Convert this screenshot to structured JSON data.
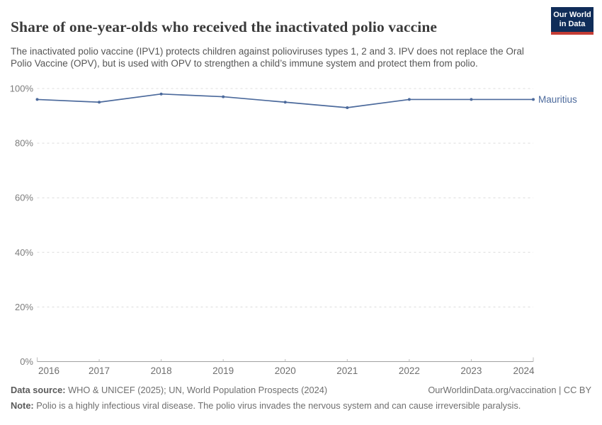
{
  "header": {
    "title": "Share of one-year-olds who received the inactivated polio vaccine",
    "logo": {
      "line1": "Our World",
      "line2": "in Data"
    }
  },
  "subtitle": "The inactivated polio vaccine (IPV1) protects children against polioviruses types 1, 2 and 3. IPV does not replace the Oral Polio Vaccine (OPV), but is used with OPV to strengthen a child’s immune system and protect them from polio.",
  "chart_data": {
    "type": "line",
    "title": "Share of one-year-olds who received the inactivated polio vaccine",
    "categories": [
      "2016",
      "2017",
      "2018",
      "2019",
      "2020",
      "2021",
      "2022",
      "2023",
      "2024"
    ],
    "series": [
      {
        "name": "Mauritius",
        "values": [
          96,
          95,
          98,
          97,
          95,
          93,
          96,
          96,
          96
        ],
        "color": "#4c6a9c"
      }
    ],
    "xlabel": "",
    "ylabel": "",
    "ylim": [
      0,
      100
    ],
    "yticks": [
      0,
      20,
      40,
      60,
      80,
      100
    ],
    "ytick_suffix": "%",
    "grid": "horizontal-dashed",
    "legend": "end-of-line-label"
  },
  "footer": {
    "datasource_label": "Data source:",
    "datasource_text": " WHO & UNICEF (2025); UN, World Population Prospects (2024)",
    "rights": "OurWorldinData.org/vaccination | CC BY",
    "note_label": "Note:",
    "note_text": " Polio is a highly infectious viral disease. The polio virus invades the nervous system and can cause irreversible paralysis."
  },
  "colors": {
    "line": "#4c6a9c",
    "gridline": "#dcdcdc",
    "axis": "#a1a1a1",
    "tick_label": "#6f6f6f",
    "y_label": "#7d7d7d",
    "logo_bg": "#102d59",
    "logo_stripe": "#c43c35"
  }
}
